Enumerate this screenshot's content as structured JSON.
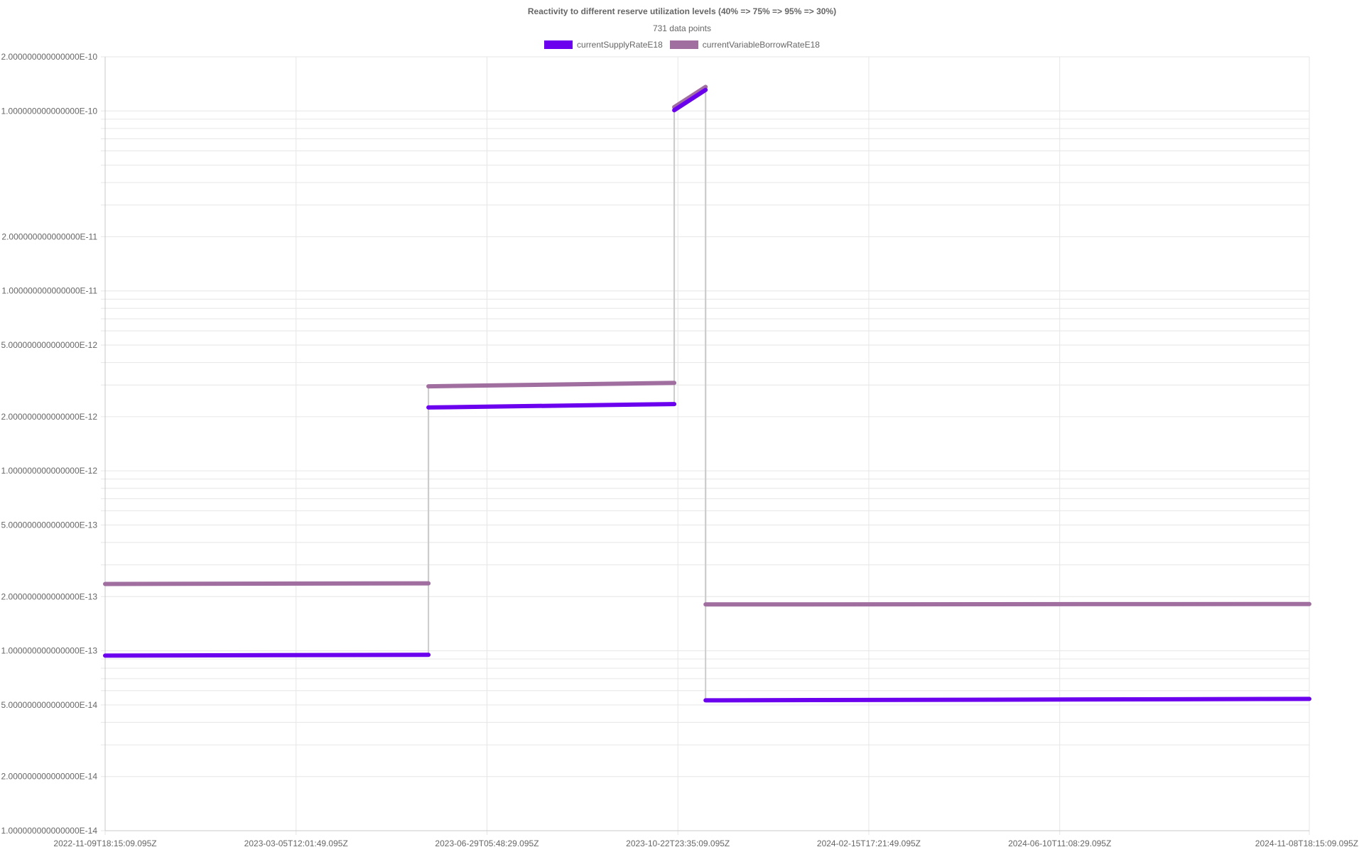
{
  "chart_data": {
    "type": "line",
    "title": "Reactivity to different reserve utilization levels (40% => 75% => 95% => 30%)",
    "subtitle": "731 data points",
    "xlabel": "",
    "ylabel": "",
    "y_scale": "log",
    "ylim": [
      1e-14,
      2e-10
    ],
    "xlim": [
      "2022-11-09T18:15:09.095Z",
      "2024-11-08T18:15:09.095Z"
    ],
    "grid": true,
    "legend_position": "top",
    "x_tick_labels": [
      "2022-11-09T18:15:09.095Z",
      "2023-03-05T12:01:49.095Z",
      "2023-06-29T05:48:29.095Z",
      "2023-10-22T23:35:09.095Z",
      "2024-02-15T17:21:49.095Z",
      "2024-06-10T11:08:29.095Z",
      "2024-11-08T18:15:09.095Z"
    ],
    "y_tick_labels": [
      {
        "value": 2e-10,
        "label": "2.000000000000000E-10"
      },
      {
        "value": 1e-10,
        "label": "1.000000000000000E-10"
      },
      {
        "value": 2e-11,
        "label": "2.000000000000000E-11"
      },
      {
        "value": 1e-11,
        "label": "1.000000000000000E-11"
      },
      {
        "value": 5e-12,
        "label": "5.000000000000000E-12"
      },
      {
        "value": 2e-12,
        "label": "2.000000000000000E-12"
      },
      {
        "value": 1e-12,
        "label": "1.000000000000000E-12"
      },
      {
        "value": 5e-13,
        "label": "5.000000000000000E-13"
      },
      {
        "value": 2e-13,
        "label": "2.000000000000000E-13"
      },
      {
        "value": 1e-13,
        "label": "1.000000000000000E-13"
      },
      {
        "value": 5e-14,
        "label": "5.000000000000000E-14"
      },
      {
        "value": 2e-14,
        "label": "2.000000000000000E-14"
      },
      {
        "value": 1e-14,
        "label": "1.000000000000000E-14"
      }
    ],
    "transition_color": "#cccccc",
    "series": [
      {
        "name": "currentSupplyRateE18",
        "color": "#6a00ee",
        "segments": [
          [
            [
              "2022-11-09T18:15:09.095Z",
              9.4e-14
            ],
            [
              "2023-05-24T18:15:09.095Z",
              9.5e-14
            ]
          ],
          [
            [
              "2023-05-24T18:15:09.095Z",
              2.25e-12
            ],
            [
              "2023-10-20T18:15:09.095Z",
              2.35e-12
            ]
          ],
          [
            [
              "2023-10-20T18:15:09.095Z",
              1.01e-10
            ],
            [
              "2023-11-08T18:15:09.095Z",
              1.31e-10
            ]
          ],
          [
            [
              "2023-11-08T18:15:09.095Z",
              5.3e-14
            ],
            [
              "2024-11-08T18:15:09.095Z",
              5.4e-14
            ]
          ]
        ]
      },
      {
        "name": "currentVariableBorrowRateE18",
        "color": "#a06fa0",
        "segments": [
          [
            [
              "2022-11-09T18:15:09.095Z",
              2.35e-13
            ],
            [
              "2023-05-24T18:15:09.095Z",
              2.37e-13
            ]
          ],
          [
            [
              "2023-05-24T18:15:09.095Z",
              2.95e-12
            ],
            [
              "2023-10-20T18:15:09.095Z",
              3.08e-12
            ]
          ],
          [
            [
              "2023-10-20T18:15:09.095Z",
              1.05e-10
            ],
            [
              "2023-11-08T18:15:09.095Z",
              1.36e-10
            ]
          ],
          [
            [
              "2023-11-08T18:15:09.095Z",
              1.81e-13
            ],
            [
              "2024-11-08T18:15:09.095Z",
              1.82e-13
            ]
          ]
        ]
      }
    ]
  }
}
